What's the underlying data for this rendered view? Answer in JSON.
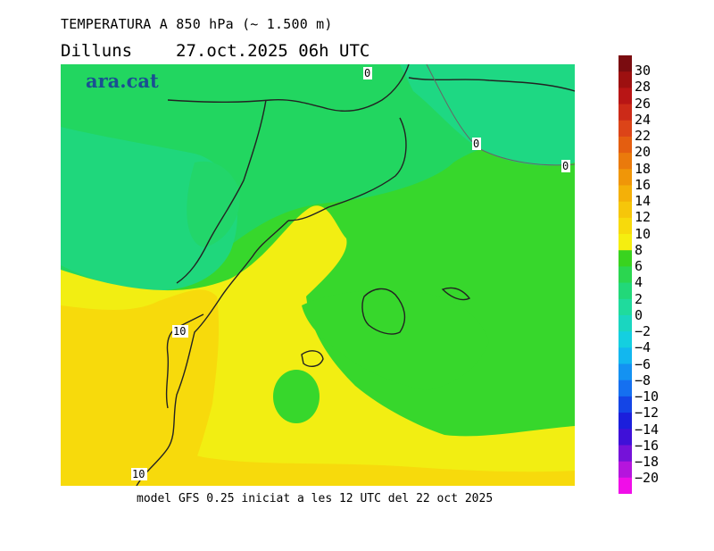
{
  "header": {
    "title": "TEMPERATURA A 850 hPa (~ 1.500 m)",
    "day": "Dilluns",
    "datetime": "27.oct.2025 06h UTC"
  },
  "map": {
    "brand": "ara.cat",
    "contour_labels": [
      "0",
      "0",
      "0",
      "10",
      "10"
    ]
  },
  "footer": {
    "model_info": "model GFS 0.25 iniciat a les 12 UTC del 22 oct 2025"
  },
  "colorbar": {
    "labels": [
      "30",
      "28",
      "26",
      "24",
      "22",
      "20",
      "18",
      "16",
      "14",
      "12",
      "10",
      "8",
      "6",
      "4",
      "2",
      "0",
      "−2",
      "−4",
      "−6",
      "−8",
      "−10",
      "−12",
      "−14",
      "−16",
      "−18",
      "−20"
    ],
    "colors": [
      "#7a0c10",
      "#9d1010",
      "#b81515",
      "#cc2a18",
      "#dc4418",
      "#e45e10",
      "#ea7a0c",
      "#f09608",
      "#f4b008",
      "#f6c60a",
      "#f7da0c",
      "#f5ee10",
      "#39d31f",
      "#2bd650",
      "#22d879",
      "#1fdb9d",
      "#1ad6c0",
      "#14cfe0",
      "#12b7ef",
      "#1492f2",
      "#1570f0",
      "#1445e6",
      "#1b1fdc",
      "#3f10d8",
      "#7512d9",
      "#b515dd",
      "#f00ee8"
    ]
  }
}
